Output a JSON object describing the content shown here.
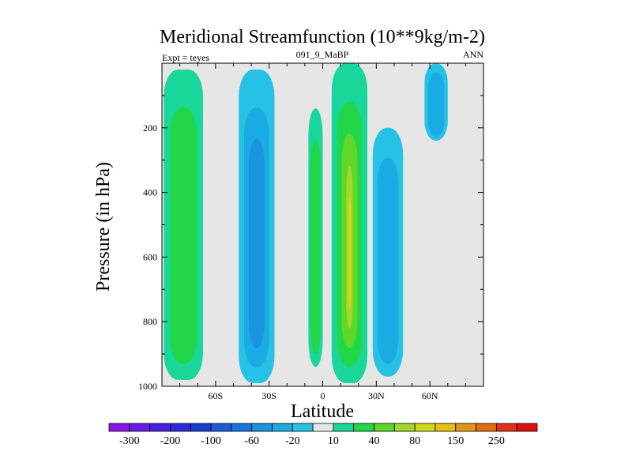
{
  "chart_data": {
    "type": "contour",
    "title": "Meridional Streamfunction (10**9kg/m-2)",
    "left_subtitle": "Expt = teyes",
    "center_subtitle": "091_9_MaBP",
    "right_subtitle": "ANN",
    "xlabel": "Latitude",
    "ylabel": "Pressure (in hPa)",
    "xlim": [
      -90,
      90
    ],
    "ylim": [
      1000,
      0
    ],
    "x_ticks": [
      -60,
      -30,
      0,
      30,
      60
    ],
    "x_tick_labels": [
      "60S",
      "30S",
      "0",
      "30N",
      "60N"
    ],
    "y_ticks": [
      200,
      400,
      600,
      800,
      1000
    ],
    "y_tick_labels": [
      "200",
      "400",
      "600",
      "800",
      "1000"
    ],
    "background_color": "#e6e6e6",
    "levels": [
      -300,
      -250,
      -200,
      -150,
      -100,
      -80,
      -60,
      -40,
      -20,
      -10,
      10,
      20,
      40,
      60,
      80,
      100,
      150,
      200,
      250,
      300
    ],
    "colorbar_labels": [
      "-300",
      "-200",
      "-100",
      "-60",
      "-20",
      "10",
      "40",
      "80",
      "150",
      "250"
    ],
    "colorbar_colors": [
      "#8a17e8",
      "#6a1ae6",
      "#4a20e2",
      "#2a2ad8",
      "#1740d2",
      "#1a5cd8",
      "#1678de",
      "#1a94e0",
      "#1aabe2",
      "#26c2e6",
      "#e6e6e6",
      "#19d79a",
      "#22d64a",
      "#5ed62a",
      "#a2d82a",
      "#d2d81a",
      "#e2c012",
      "#e49612",
      "#e26a14",
      "#e03414",
      "#de1010"
    ],
    "cells": [
      {
        "name": "sh-polar-positive-cell",
        "sign": "positive",
        "lat_min": -89,
        "lat_max": -67,
        "p_top": 20,
        "p_bottom": 980,
        "levels": [
          {
            "level": 10,
            "color": "#19d79a"
          },
          {
            "level": 20,
            "color": "#22d64a"
          }
        ]
      },
      {
        "name": "sh-ferrel-negative-cell",
        "sign": "negative",
        "lat_min": -47,
        "lat_max": -27,
        "p_top": 20,
        "p_bottom": 990,
        "levels": [
          {
            "level": -10,
            "color": "#26c2e6"
          },
          {
            "level": -20,
            "color": "#1aabe2"
          },
          {
            "level": -40,
            "color": "#1a94e0"
          }
        ]
      },
      {
        "name": "southern-hadley-positive-cell",
        "sign": "positive",
        "lat_min": -8,
        "lat_max": 0,
        "p_top": 140,
        "p_bottom": 940,
        "levels": [
          {
            "level": 10,
            "color": "#19d79a"
          },
          {
            "level": 20,
            "color": "#22d64a"
          }
        ]
      },
      {
        "name": "northern-hadley-positive-cell",
        "sign": "positive",
        "lat_min": 5,
        "lat_max": 25,
        "p_top": 0,
        "p_bottom": 990,
        "levels": [
          {
            "level": 10,
            "color": "#19d79a"
          },
          {
            "level": 20,
            "color": "#22d64a"
          },
          {
            "level": 40,
            "color": "#5ed62a"
          },
          {
            "level": 60,
            "color": "#a2d82a"
          },
          {
            "level": 80,
            "color": "#d2d81a"
          }
        ]
      },
      {
        "name": "nh-ferrel-negative-cell",
        "sign": "negative",
        "lat_min": 28,
        "lat_max": 45,
        "p_top": 200,
        "p_bottom": 970,
        "levels": [
          {
            "level": -10,
            "color": "#26c2e6"
          },
          {
            "level": -20,
            "color": "#1aabe2"
          }
        ]
      },
      {
        "name": "nh-polar-negative-cell",
        "sign": "negative",
        "lat_min": 57,
        "lat_max": 70,
        "p_top": 0,
        "p_bottom": 240,
        "levels": [
          {
            "level": -10,
            "color": "#26c2e6"
          },
          {
            "level": -20,
            "color": "#1aabe2"
          }
        ]
      }
    ]
  }
}
